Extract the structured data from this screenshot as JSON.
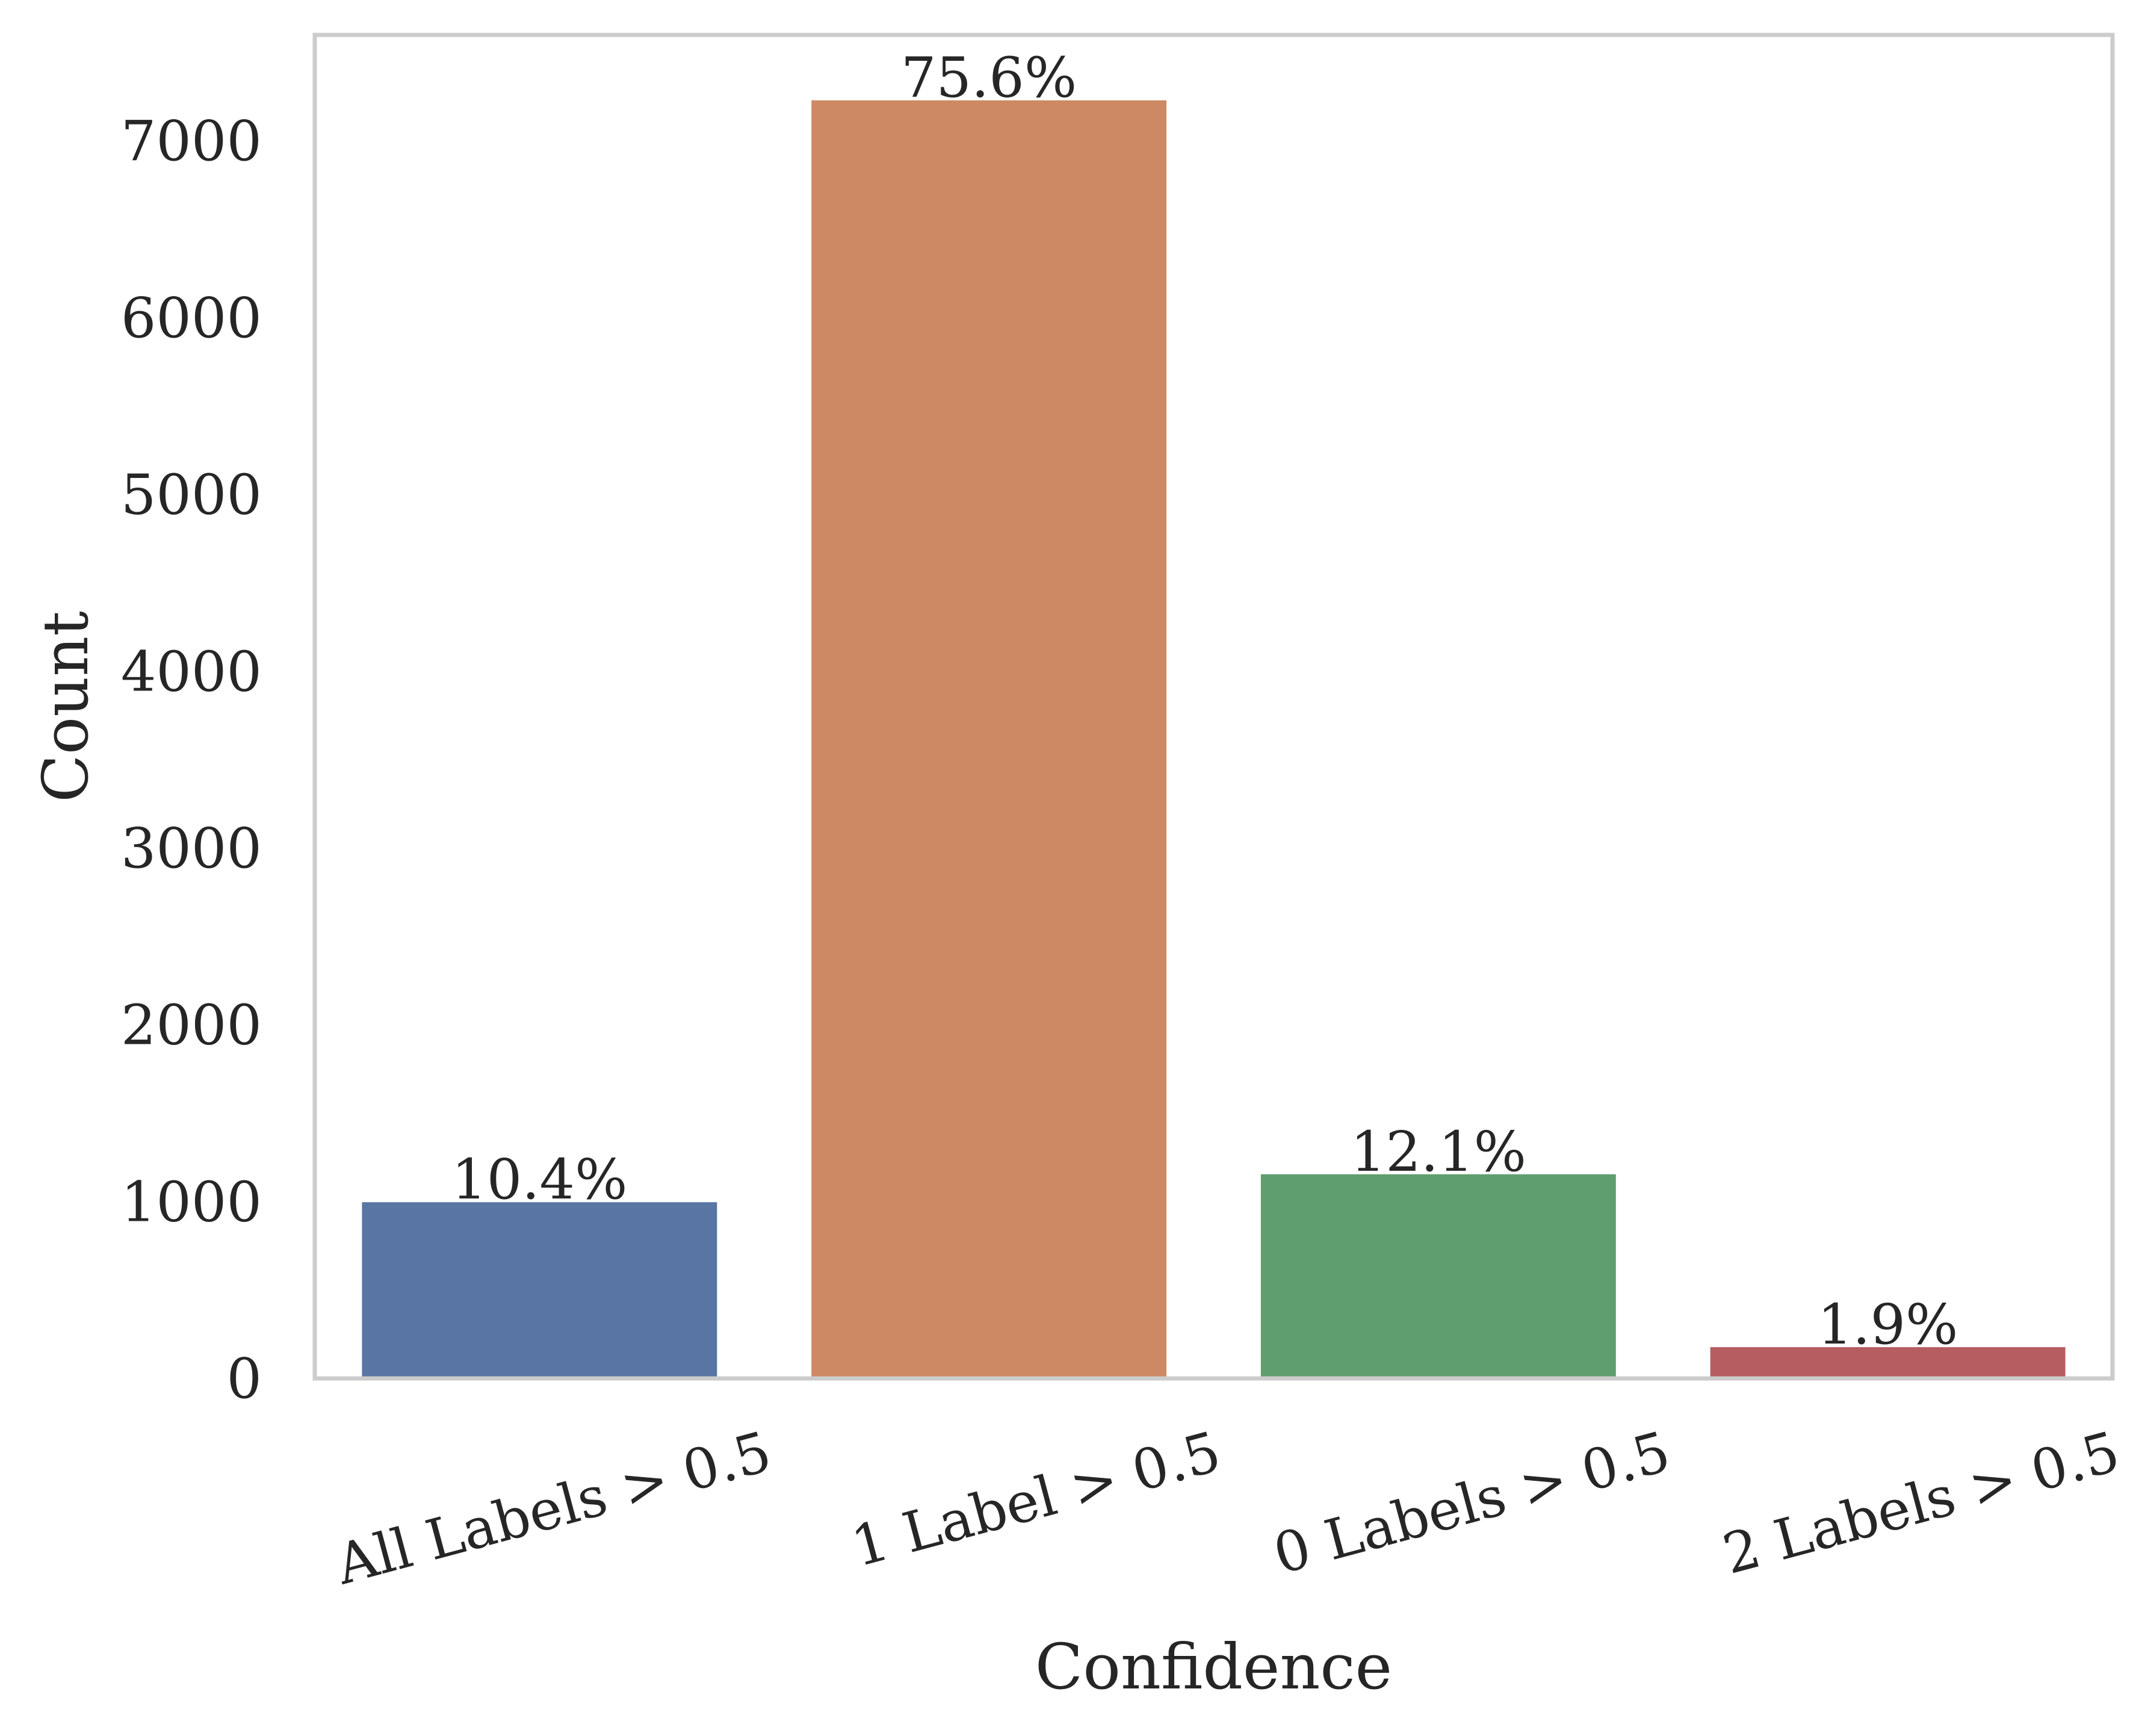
{
  "chart_data": {
    "type": "bar",
    "title": "",
    "xlabel": "Confidence",
    "ylabel": "Count",
    "categories": [
      "All Labels > 0.5",
      "1 Label > 0.5",
      "0 Labels > 0.5",
      "2 Labels > 0.5"
    ],
    "values": [
      997,
      7230,
      1155,
      177
    ],
    "bar_labels": [
      "10.4%",
      "75.6%",
      "12.1%",
      "1.9%"
    ],
    "colors": [
      "#5875a4",
      "#cc8963",
      "#5f9e6e",
      "#b55d60"
    ],
    "yticks": [
      "0",
      "1000",
      "2000",
      "3000",
      "4000",
      "5000",
      "6000",
      "7000"
    ],
    "ylim": [
      0,
      7600
    ],
    "grid": false,
    "frame_color": "#cccccc"
  }
}
